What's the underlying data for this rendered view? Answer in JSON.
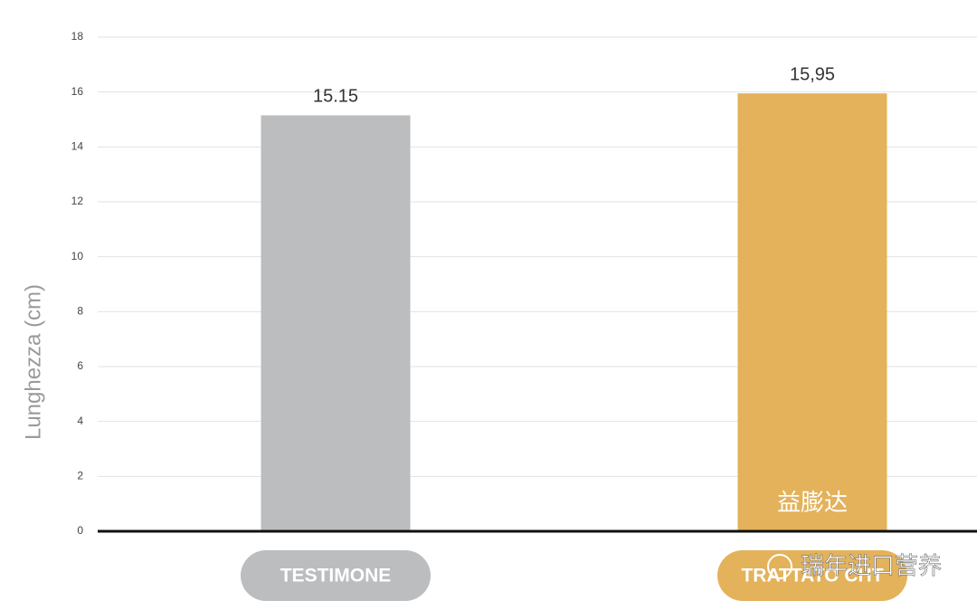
{
  "chart_data": {
    "type": "bar",
    "ylabel": "Lunghezza (cm)",
    "categories": [
      "TESTIMONE",
      "TRATTATO CHT"
    ],
    "values": [
      15.15,
      15.95
    ],
    "value_labels": [
      "15.15",
      "15,95"
    ],
    "colors": [
      "#bcbdbf",
      "#e3b25a"
    ],
    "inner_labels": [
      null,
      "益膨达"
    ],
    "ylim": [
      0,
      18
    ],
    "yticks": [
      0,
      2,
      4,
      6,
      8,
      10,
      12,
      14,
      16,
      18
    ],
    "grid": true,
    "watermark": "瑞年进口营养"
  }
}
